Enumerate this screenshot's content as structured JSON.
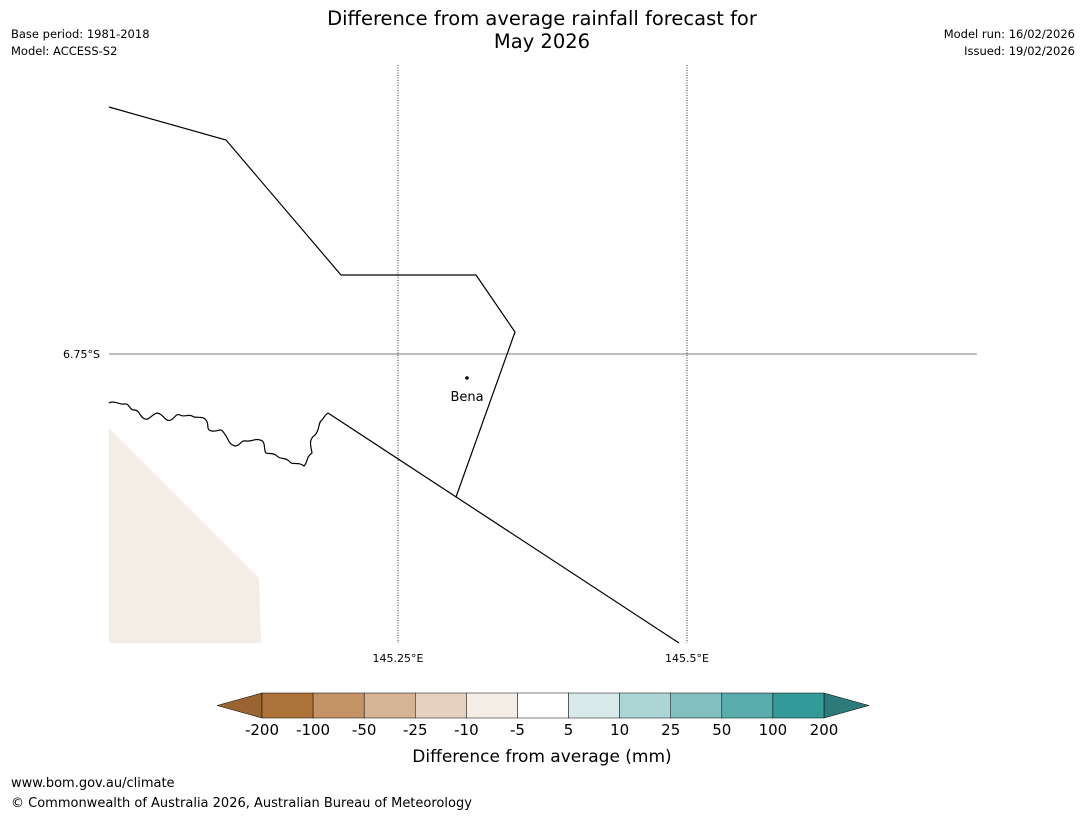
{
  "title": {
    "line1": "Difference from average rainfall forecast for",
    "line2": "May 2026"
  },
  "meta_left": {
    "base_period": "Base period: 1981-2018",
    "model": "Model: ACCESS-S2"
  },
  "meta_right": {
    "model_run": "Model run: 16/02/2026",
    "issued": "Issued: 19/02/2026"
  },
  "map": {
    "lat_labels": [
      "6.75°S"
    ],
    "lon_labels": [
      "145.25°E",
      "145.5°E"
    ],
    "place": {
      "name": "Bena",
      "icon": "town-dot-icon"
    },
    "region_fill_color": "#f3ede5"
  },
  "legend": {
    "title": "Difference from average (mm)",
    "ticks": [
      "-200",
      "-100",
      "-50",
      "-25",
      "-10",
      "-5",
      "5",
      "10",
      "25",
      "50",
      "100",
      "200"
    ],
    "low_extension_color": "#9a6332",
    "high_extension_color": "#2c7b7a",
    "colors": [
      "#ad733b",
      "#c49467",
      "#d6b394",
      "#e6d1be",
      "#f3ede5",
      "#ffffff",
      "#d7e9e9",
      "#acd6d6",
      "#82c0bf",
      "#58acab",
      "#329a99"
    ]
  },
  "footer": {
    "url": "www.bom.gov.au/climate",
    "copyright": "© Commonwealth of Australia 2026, Australian Bureau of Meteorology"
  }
}
